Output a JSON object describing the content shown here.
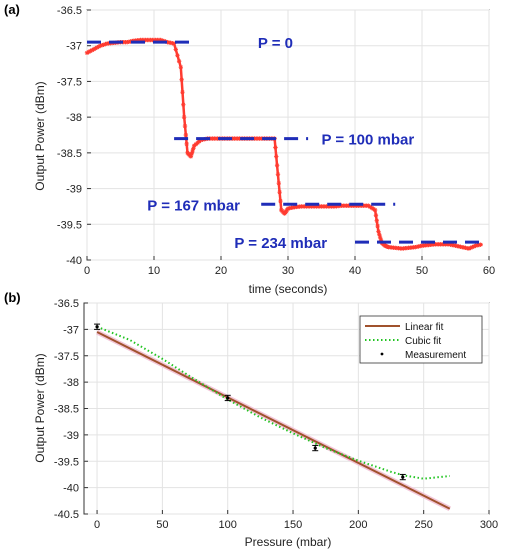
{
  "chart_data": [
    {
      "type": "line",
      "panel_label": "(a)",
      "xlabel": "time (seconds)",
      "ylabel": "Output Power (dBm)",
      "xlim": [
        0,
        60
      ],
      "ylim": [
        -40,
        -36.5
      ],
      "xticks": [
        0,
        10,
        20,
        30,
        40,
        50,
        60
      ],
      "yticks": [
        -36.5,
        -37,
        -37.5,
        -38,
        -38.5,
        -39,
        -39.5,
        -40
      ],
      "grid": true,
      "series": [
        {
          "color": "#ff3b30",
          "marker": "star",
          "x": [
            0,
            1,
            2,
            3,
            4,
            5,
            6,
            7,
            8,
            9,
            10,
            11,
            12,
            13,
            14,
            14.5,
            15,
            15.5,
            16,
            17,
            18,
            19,
            20,
            21,
            22,
            23,
            24,
            25,
            26,
            27,
            28,
            28.5,
            29,
            29.5,
            30,
            31,
            32,
            33,
            34,
            35,
            36,
            37,
            38,
            39,
            40,
            41,
            42,
            43,
            43.5,
            44,
            44.5,
            45,
            46,
            47,
            48,
            49,
            50,
            51,
            52,
            53,
            54,
            55,
            56,
            57,
            58,
            59
          ],
          "y": [
            -37.1,
            -37.05,
            -37.0,
            -36.97,
            -36.96,
            -36.95,
            -36.95,
            -36.93,
            -36.92,
            -36.92,
            -36.92,
            -36.92,
            -36.95,
            -36.97,
            -37.3,
            -38.0,
            -38.5,
            -38.55,
            -38.4,
            -38.32,
            -38.3,
            -38.3,
            -38.3,
            -38.3,
            -38.3,
            -38.3,
            -38.3,
            -38.3,
            -38.3,
            -38.3,
            -38.3,
            -38.8,
            -39.3,
            -39.35,
            -39.28,
            -39.26,
            -39.25,
            -39.25,
            -39.25,
            -39.25,
            -39.25,
            -39.25,
            -39.24,
            -39.24,
            -39.24,
            -39.24,
            -39.24,
            -39.3,
            -39.6,
            -39.76,
            -39.8,
            -39.82,
            -39.83,
            -39.84,
            -39.83,
            -39.82,
            -39.8,
            -39.79,
            -39.78,
            -39.78,
            -39.78,
            -39.8,
            -39.82,
            -39.84,
            -39.8,
            -39.78
          ]
        }
      ],
      "annotations": [
        {
          "text": "P = 0",
          "level": -36.95,
          "x_start": 0,
          "x_end": 16,
          "text_x": 25.5
        },
        {
          "text": "P = 100 mbar",
          "level": -38.3,
          "x_start": 13,
          "x_end": 33,
          "text_x": 35
        },
        {
          "text": "P = 167 mbar",
          "level": -39.22,
          "x_start": 26,
          "x_end": 46,
          "text_x": 9
        },
        {
          "text": "P = 234 mbar",
          "level": -39.75,
          "x_start": 40,
          "x_end": 59.5,
          "text_x": 22
        }
      ],
      "annotation_color": "#1f2db8"
    },
    {
      "type": "scatter",
      "panel_label": "(b)",
      "xlabel": "Pressure (mbar)",
      "ylabel": "Output Power (dBm)",
      "xlim": [
        -10,
        300
      ],
      "ylim": [
        -40.5,
        -36.5
      ],
      "xticks": [
        0,
        50,
        100,
        150,
        200,
        250,
        300
      ],
      "yticks": [
        -36.5,
        -37,
        -37.5,
        -38,
        -38.5,
        -39,
        -39.5,
        -40,
        -40.5
      ],
      "grid": true,
      "legend_position": "top-right",
      "series": [
        {
          "name": "Linear fit",
          "kind": "line",
          "color": "#a0522d",
          "x": [
            0,
            270
          ],
          "y": [
            -37.05,
            -40.4
          ]
        },
        {
          "name": "Cubic fit",
          "kind": "dotted",
          "color": "#22c422",
          "x": [
            0,
            25,
            50,
            75,
            100,
            125,
            150,
            175,
            200,
            225,
            235,
            250,
            270
          ],
          "y": [
            -36.95,
            -37.2,
            -37.56,
            -37.95,
            -38.33,
            -38.67,
            -38.97,
            -39.25,
            -39.49,
            -39.7,
            -39.77,
            -39.83,
            -39.78
          ]
        },
        {
          "name": "Measurement",
          "kind": "points",
          "color": "#000000",
          "x": [
            0,
            100,
            167,
            234
          ],
          "y": [
            -36.95,
            -38.3,
            -39.25,
            -39.8
          ],
          "error": 0.05
        }
      ]
    }
  ]
}
